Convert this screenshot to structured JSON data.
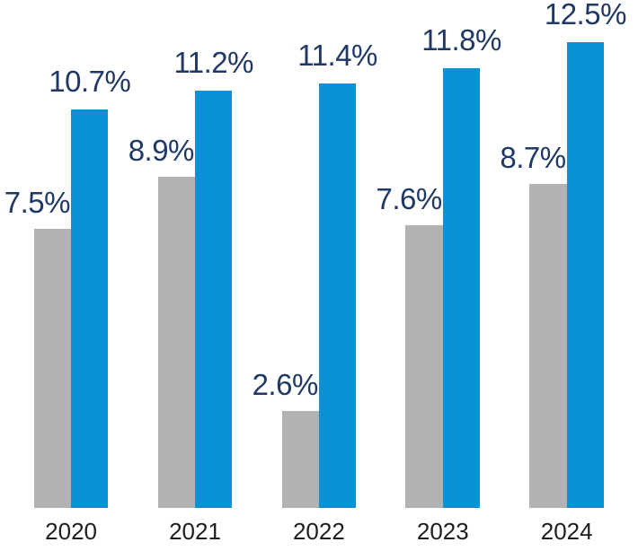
{
  "chart_data": {
    "type": "bar",
    "title": "",
    "xlabel": "",
    "ylabel": "",
    "categories": [
      "2020",
      "2021",
      "2022",
      "2023",
      "2024"
    ],
    "series": [
      {
        "key": "gray",
        "color": "#b2b2b2",
        "values": [
          7.5,
          8.9,
          2.6,
          7.6,
          8.7
        ],
        "labels": [
          "7.5%",
          "8.9%",
          "2.6%",
          "7.6%",
          "8.7%"
        ]
      },
      {
        "key": "blue",
        "color": "#0991d5",
        "values": [
          10.7,
          11.2,
          11.4,
          11.8,
          12.5
        ],
        "labels": [
          "10.7%",
          "11.2%",
          "11.4%",
          "11.8%",
          "12.5%"
        ]
      }
    ],
    "ylim": [
      0,
      13.6
    ],
    "grid": false,
    "legend": "none",
    "axis_line": "none",
    "data_label_color": "#1f3864",
    "category_label_color": "#1e1e1e",
    "background": "#ffffff"
  }
}
